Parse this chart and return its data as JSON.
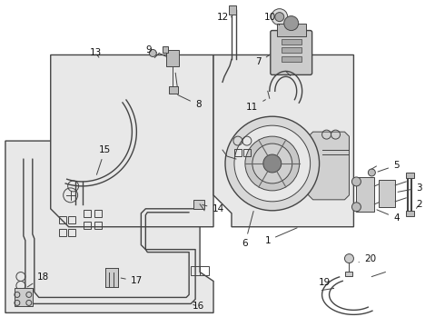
{
  "bg_color": "#ffffff",
  "line_color": "#444444",
  "label_color": "#111111",
  "gray_fill": "#e8e8e8",
  "dark_fill": "#999999",
  "med_fill": "#bbbbbb"
}
